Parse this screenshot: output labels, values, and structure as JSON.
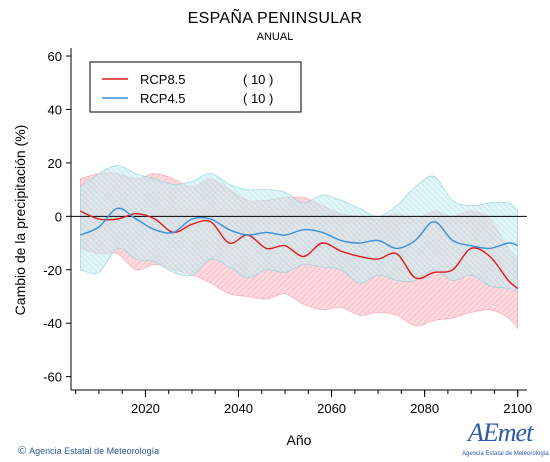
{
  "title": "ESPAÑA PENINSULAR",
  "subtitle": "ANUAL",
  "credit": "Agencia Estatal de Meteorología",
  "credit_symbol": "©",
  "logo": {
    "word": "AEmet",
    "tagline": "Agencia Estatal de Meteorología"
  },
  "colors": {
    "rcp85": "#dd1c1c",
    "rcp45": "#3a8fd9",
    "rcp85_band": "#f7a1ac",
    "rcp45_band": "#8fd3df"
  },
  "chart_data": {
    "type": "line",
    "title": "ESPAÑA PENINSULAR",
    "subtitle": "ANUAL",
    "xlabel": "Año",
    "ylabel": "Cambio de la precipitación (%)",
    "xlim": [
      2004,
      2102
    ],
    "ylim": [
      -65,
      63
    ],
    "xticks": [
      2020,
      2040,
      2060,
      2080,
      2100
    ],
    "yticks": [
      -60,
      -40,
      -20,
      0,
      20,
      40,
      60
    ],
    "legend_position": "top-left",
    "x": [
      2006,
      2010,
      2014,
      2018,
      2022,
      2026,
      2030,
      2034,
      2038,
      2042,
      2046,
      2050,
      2054,
      2058,
      2062,
      2066,
      2070,
      2074,
      2078,
      2082,
      2086,
      2090,
      2094,
      2098,
      2100
    ],
    "series": [
      {
        "name": "RCP8.5",
        "members": "( 10 )",
        "values": [
          2,
          -1,
          -1,
          1,
          -1,
          -6,
          -3,
          -2,
          -10,
          -7,
          -12,
          -11,
          -15,
          -10,
          -13,
          -15,
          -16,
          -14,
          -23,
          -21,
          -20,
          -12,
          -15,
          -24,
          -27
        ],
        "band_upper": [
          14,
          16,
          16,
          14,
          16,
          14,
          11,
          14,
          10,
          6,
          6,
          7,
          7,
          4,
          1,
          0,
          -1,
          1,
          -1,
          2,
          0,
          2,
          -1,
          -12,
          -16
        ],
        "band_lower": [
          -12,
          -14,
          -14,
          -20,
          -18,
          -20,
          -22,
          -25,
          -29,
          -30,
          -31,
          -29,
          -33,
          -35,
          -34,
          -37,
          -36,
          -37,
          -41,
          -39,
          -38,
          -36,
          -35,
          -38,
          -42
        ]
      },
      {
        "name": "RCP4.5",
        "members": "( 10 )",
        "values": [
          -7,
          -4,
          3,
          -1,
          -5,
          -6,
          -1,
          -1,
          -5,
          -7,
          -6,
          -7,
          -5,
          -6,
          -9,
          -10,
          -9,
          -12,
          -9,
          -2,
          -9,
          -11,
          -12,
          -10,
          -11
        ],
        "band_upper": [
          11,
          16,
          19,
          16,
          14,
          12,
          13,
          16,
          12,
          10,
          10,
          9,
          5,
          8,
          6,
          3,
          0,
          4,
          11,
          15,
          6,
          4,
          5,
          5,
          2
        ],
        "band_lower": [
          -20,
          -21,
          -12,
          -16,
          -17,
          -21,
          -22,
          -16,
          -19,
          -23,
          -20,
          -21,
          -18,
          -19,
          -20,
          -25,
          -22,
          -24,
          -24,
          -20,
          -24,
          -22,
          -26,
          -27,
          -28
        ]
      }
    ]
  }
}
